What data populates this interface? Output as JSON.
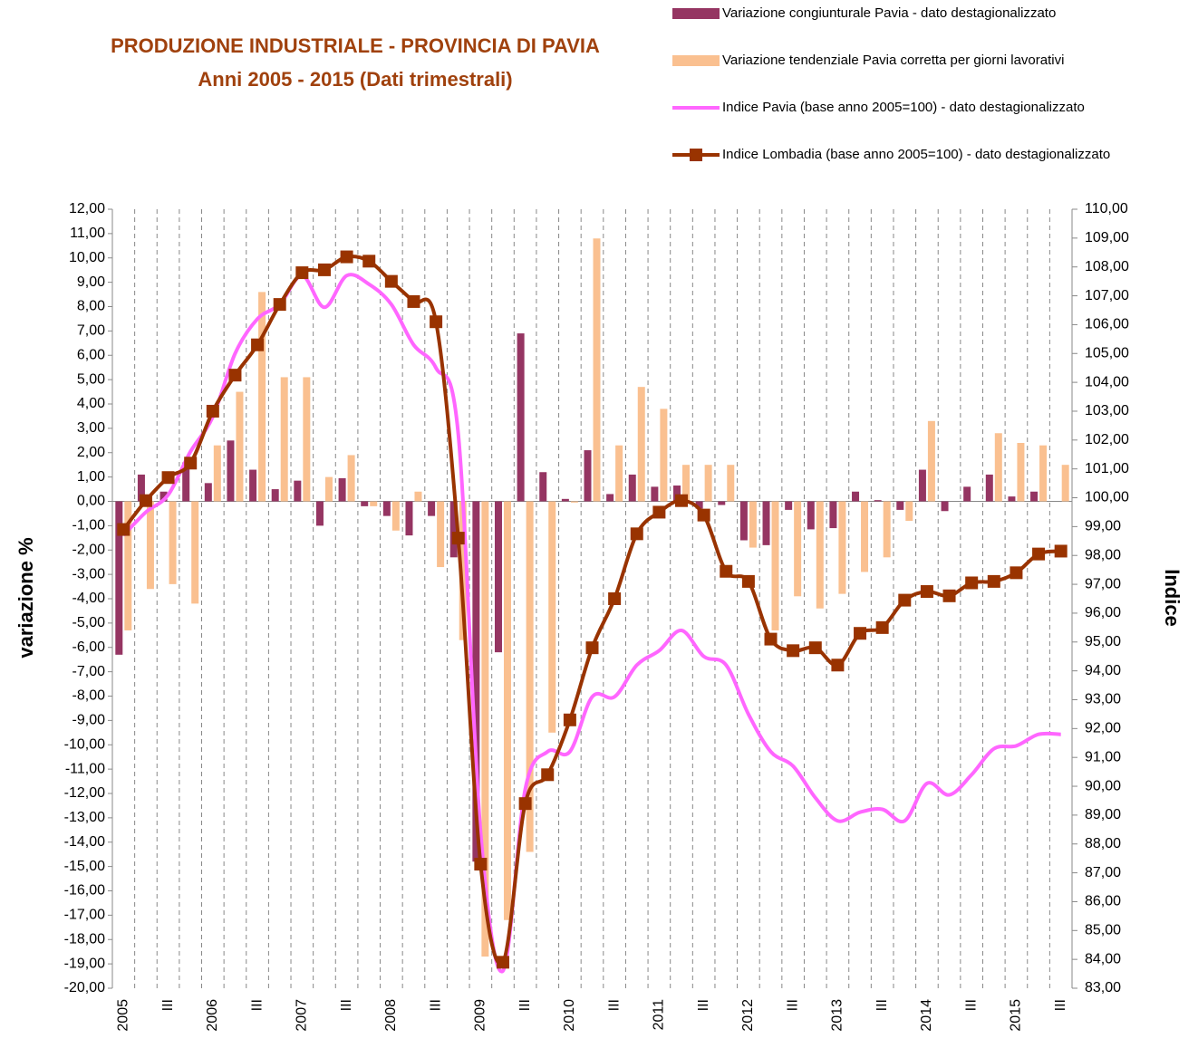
{
  "chart_data": {
    "type": "combo",
    "title": [
      "PRODUZIONE INDUSTRIALE - PROVINCIA DI PAVIA",
      "Anni 2005 - 2015 (Dati trimestrali)"
    ],
    "y_label": "variazione %",
    "y2_label": "Indice",
    "categories": [
      "2005",
      null,
      "III",
      null,
      "2006",
      null,
      "III",
      null,
      "2007",
      null,
      "III",
      null,
      "2008",
      null,
      "III",
      null,
      "2009",
      null,
      "III",
      null,
      "2010",
      null,
      "III",
      null,
      "2011",
      null,
      "III",
      null,
      "2012",
      null,
      "III",
      null,
      "2013",
      null,
      "III",
      null,
      "2014",
      null,
      "III",
      null,
      "2015",
      null,
      "III"
    ],
    "x_grid": true,
    "series": [
      {
        "name": "Variazione congiunturale Pavia - dato destagionalizzato",
        "type": "bar",
        "color": "#953562",
        "values": [
          -6.3,
          1.1,
          0.4,
          1.6,
          0.75,
          2.5,
          1.3,
          0.5,
          0.85,
          -1.0,
          0.95,
          -0.2,
          -0.6,
          -1.4,
          -0.6,
          -2.3,
          -14.8,
          -6.2,
          6.9,
          1.2,
          0.1,
          2.1,
          0.3,
          1.1,
          0.6,
          0.65,
          -0.3,
          -0.15,
          -1.6,
          -1.8,
          -0.35,
          -1.15,
          -1.1,
          0.4,
          0.05,
          -0.35,
          1.3,
          -0.4,
          0.6,
          1.1,
          0.2,
          0.4,
          0
        ]
      },
      {
        "name": "Variazione tendenziale Pavia corretta per giorni lavorativi",
        "type": "bar",
        "color": "#fac090",
        "values": [
          -5.3,
          -3.6,
          -3.4,
          -4.2,
          2.3,
          4.5,
          8.6,
          5.1,
          5.1,
          1.0,
          1.9,
          -0.2,
          -1.2,
          0.4,
          -2.7,
          -5.7,
          -18.7,
          -17.2,
          -14.4,
          -9.5,
          -0.05,
          10.8,
          2.3,
          4.7,
          3.8,
          1.5,
          1.5,
          1.5,
          -1.9,
          -5.3,
          -3.9,
          -4.4,
          -3.8,
          -2.9,
          -2.3,
          -0.8,
          3.3,
          0,
          0,
          2.8,
          2.4,
          2.3,
          1.5
        ]
      },
      {
        "name": "Indice Pavia (base anno 2005=100) - dato destagionalizzato",
        "type": "line",
        "axis": "y2",
        "color": "#ff66ff",
        "smooth": true,
        "values": [
          98.7,
          99.5,
          100.1,
          101.6,
          102.8,
          105.0,
          106.2,
          106.7,
          107.7,
          106.6,
          107.7,
          107.4,
          106.7,
          105.3,
          104.5,
          102.2,
          88.4,
          83.6,
          89.9,
          91.2,
          91.2,
          93.1,
          93.1,
          94.2,
          94.7,
          95.4,
          94.5,
          94.2,
          92.5,
          91.2,
          90.7,
          89.6,
          88.8,
          89.1,
          89.2,
          88.8,
          90.1,
          89.7,
          90.4,
          91.3,
          91.4,
          91.8,
          91.8
        ]
      },
      {
        "name": "Indice Lombadia (base anno 2005=100) - dato destagionalizzato",
        "type": "line",
        "axis": "y2",
        "color": "#993300",
        "smooth": true,
        "marker": "square",
        "values": [
          98.9,
          99.9,
          100.7,
          101.2,
          103.0,
          104.25,
          105.3,
          106.7,
          107.8,
          107.9,
          108.35,
          108.2,
          107.5,
          106.8,
          106.1,
          98.6,
          87.3,
          83.9,
          89.4,
          90.4,
          92.3,
          94.8,
          96.5,
          98.75,
          99.5,
          99.9,
          99.4,
          97.45,
          97.1,
          95.1,
          94.7,
          94.8,
          94.2,
          95.3,
          95.5,
          96.45,
          96.75,
          96.6,
          97.05,
          97.1,
          97.4,
          98.05,
          98.15
        ]
      }
    ],
    "ylim": [
      -20,
      12
    ],
    "yticks": [
      {
        "value": 12,
        "label": "12,00"
      },
      {
        "value": 11,
        "label": "11,00"
      },
      {
        "value": 10,
        "label": "10,00"
      },
      {
        "value": 9,
        "label": "9,00"
      },
      {
        "value": 8,
        "label": "8,00"
      },
      {
        "value": 7,
        "label": "7,00"
      },
      {
        "value": 6,
        "label": "6,00"
      },
      {
        "value": 5,
        "label": "5,00"
      },
      {
        "value": 4,
        "label": "4,00"
      },
      {
        "value": 3,
        "label": "3,00"
      },
      {
        "value": 2,
        "label": "2,00"
      },
      {
        "value": 1,
        "label": "1,00"
      },
      {
        "value": 0,
        "label": "0,00"
      },
      {
        "value": -1,
        "label": "-1,00"
      },
      {
        "value": -2,
        "label": "-2,00"
      },
      {
        "value": -3,
        "label": "-3,00"
      },
      {
        "value": -4,
        "label": "-4,00"
      },
      {
        "value": -5,
        "label": "-5,00"
      },
      {
        "value": -6,
        "label": "-6,00"
      },
      {
        "value": -7,
        "label": "-7,00"
      },
      {
        "value": -8,
        "label": "-8,00"
      },
      {
        "value": -9,
        "label": "-9,00"
      },
      {
        "value": -10,
        "label": "-10,00"
      },
      {
        "value": -11,
        "label": "-11,00"
      },
      {
        "value": -12,
        "label": "-12,00"
      },
      {
        "value": -13,
        "label": "-13,00"
      },
      {
        "value": -14,
        "label": "-14,00"
      },
      {
        "value": -15,
        "label": "-15,00"
      },
      {
        "value": -16,
        "label": "-16,00"
      },
      {
        "value": -17,
        "label": "-17,00"
      },
      {
        "value": -18,
        "label": "-18,00"
      },
      {
        "value": -19,
        "label": "-19,00"
      },
      {
        "value": -20,
        "label": "-20,00"
      }
    ],
    "y2lim": [
      83,
      110
    ],
    "y2ticks": [
      {
        "value": 110,
        "label": "110,00"
      },
      {
        "value": 109,
        "label": "109,00"
      },
      {
        "value": 108,
        "label": "108,00"
      },
      {
        "value": 107,
        "label": "107,00"
      },
      {
        "value": 106,
        "label": "106,00"
      },
      {
        "value": 105,
        "label": "105,00"
      },
      {
        "value": 104,
        "label": "104,00"
      },
      {
        "value": 103,
        "label": "103,00"
      },
      {
        "value": 102,
        "label": "102,00"
      },
      {
        "value": 101,
        "label": "101,00"
      },
      {
        "value": 100,
        "label": "100,00"
      },
      {
        "value": 99,
        "label": "99,00"
      },
      {
        "value": 98,
        "label": "98,00"
      },
      {
        "value": 97,
        "label": "97,00"
      },
      {
        "value": 96,
        "label": "96,00"
      },
      {
        "value": 95,
        "label": "95,00"
      },
      {
        "value": 94,
        "label": "94,00"
      },
      {
        "value": 93,
        "label": "93,00"
      },
      {
        "value": 92,
        "label": "92,00"
      },
      {
        "value": 91,
        "label": "91,00"
      },
      {
        "value": 90,
        "label": "90,00"
      },
      {
        "value": 89,
        "label": "89,00"
      },
      {
        "value": 88,
        "label": "88,00"
      },
      {
        "value": 87,
        "label": "87,00"
      },
      {
        "value": 86,
        "label": "86,00"
      },
      {
        "value": 85,
        "label": "85,00"
      },
      {
        "value": 84,
        "label": "84,00"
      },
      {
        "value": 83,
        "label": "83,00"
      }
    ]
  }
}
